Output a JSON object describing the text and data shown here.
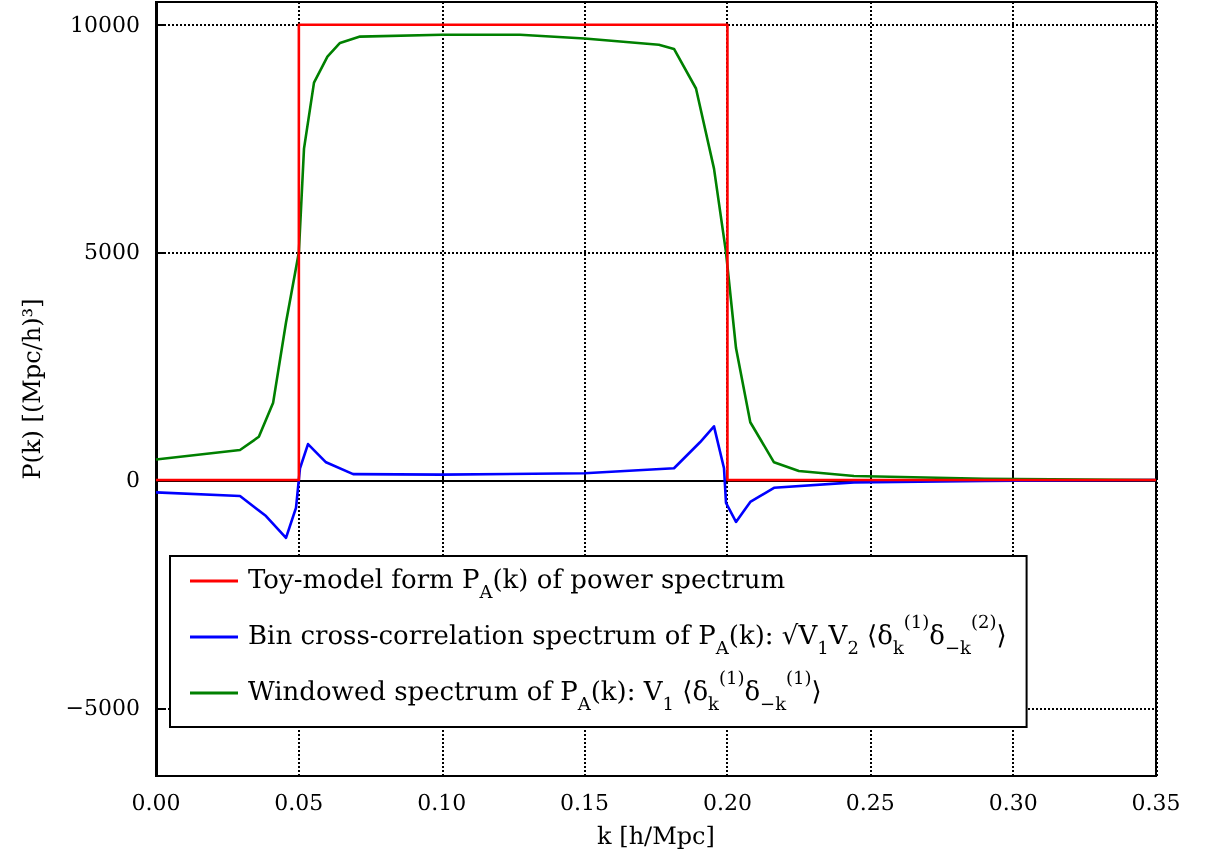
{
  "chart_data": {
    "type": "line",
    "xlabel": "k [h/Mpc]",
    "ylabel": "P(k) [(Mpc/h)³]",
    "series": [
      {
        "name": "Toy-model form P$_{A}$(k) of power spectrum",
        "color": "#ff0000",
        "x": [
          0,
          0.05,
          0.05,
          0.2,
          0.2,
          0.35
        ],
        "values": [
          0,
          0,
          10000,
          10000,
          0,
          0
        ]
      },
      {
        "name": "Bin cross-correlation spectrum of P$_{A}$(k): √V$_{1}$V$_{2}$ ⟨δ$_{k}$$^{(1)}$δ$_{−k}$$^{(2)}$⟩",
        "color": "#0000ff",
        "x": [
          0,
          0.0294,
          0.0385,
          0.0455,
          0.049,
          0.0504,
          0.0532,
          0.0595,
          0.069,
          0.1,
          0.15,
          0.1813,
          0.1904,
          0.1953,
          0.1988,
          0.1995,
          0.203,
          0.208,
          0.2163,
          0.2443,
          0.29,
          0.35
        ],
        "values": [
          -270,
          -350,
          -790,
          -1270,
          -610,
          260,
          790,
          390,
          130,
          120,
          150,
          260,
          830,
          1180,
          260,
          -500,
          -920,
          -480,
          -170,
          -50,
          -20,
          0
        ]
      },
      {
        "name": "Windowed spectrum of P$_{A}$(k): V$_{1}$ ⟨δ$_{k}$$^{(1)}$δ$_{−k}$$^{(1)}$⟩",
        "color": "#008000",
        "x": [
          0,
          0.0294,
          0.036,
          0.041,
          0.0455,
          0.05,
          0.0518,
          0.0553,
          0.06,
          0.0644,
          0.0714,
          0.1,
          0.1274,
          0.15,
          0.176,
          0.1813,
          0.189,
          0.1953,
          0.1995,
          0.203,
          0.208,
          0.2163,
          0.225,
          0.2443,
          0.29,
          0.35
        ],
        "values": [
          450,
          660,
          950,
          1700,
          3460,
          5000,
          7280,
          8730,
          9300,
          9600,
          9740,
          9780,
          9780,
          9700,
          9560,
          9470,
          8600,
          6840,
          5000,
          2900,
          1270,
          390,
          200,
          90,
          30,
          0
        ]
      }
    ],
    "xlim": [
      0,
      0.35
    ],
    "ylim": [
      -6500,
      10500
    ],
    "xticks": [
      {
        "value": 0,
        "label": "0.00"
      },
      {
        "value": 0.05,
        "label": "0.05"
      },
      {
        "value": 0.1,
        "label": "0.10"
      },
      {
        "value": 0.15,
        "label": "0.15"
      },
      {
        "value": 0.2,
        "label": "0.20"
      },
      {
        "value": 0.25,
        "label": "0.25"
      },
      {
        "value": 0.3,
        "label": "0.30"
      },
      {
        "value": 0.35,
        "label": "0.35"
      }
    ],
    "yticks": [
      {
        "value": -5000,
        "label": "−5000"
      },
      0,
      5000,
      10000
    ],
    "grid": true,
    "legend": "bottom left",
    "marker": "none",
    "line_style": "solid"
  }
}
